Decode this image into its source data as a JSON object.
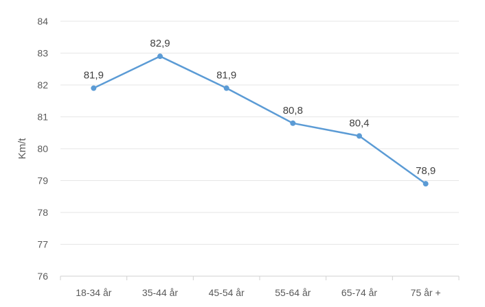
{
  "chart_data": {
    "type": "line",
    "title": "",
    "xlabel": "",
    "ylabel": "Km/t",
    "categories": [
      "18-34 år",
      "35-44 år",
      "45-54 år",
      "55-64 år",
      "65-74 år",
      "75 år +"
    ],
    "series": [
      {
        "values": [
          81.9,
          82.9,
          81.9,
          80.8,
          80.4,
          78.9
        ],
        "labels": [
          "81,9",
          "82,9",
          "81,9",
          "80,8",
          "80,4",
          "78,9"
        ],
        "color": "#5b9bd5"
      }
    ],
    "ylim": [
      76,
      84
    ],
    "yticks": [
      76,
      77,
      78,
      79,
      80,
      81,
      82,
      83,
      84
    ],
    "grid": true,
    "legend": "none"
  }
}
